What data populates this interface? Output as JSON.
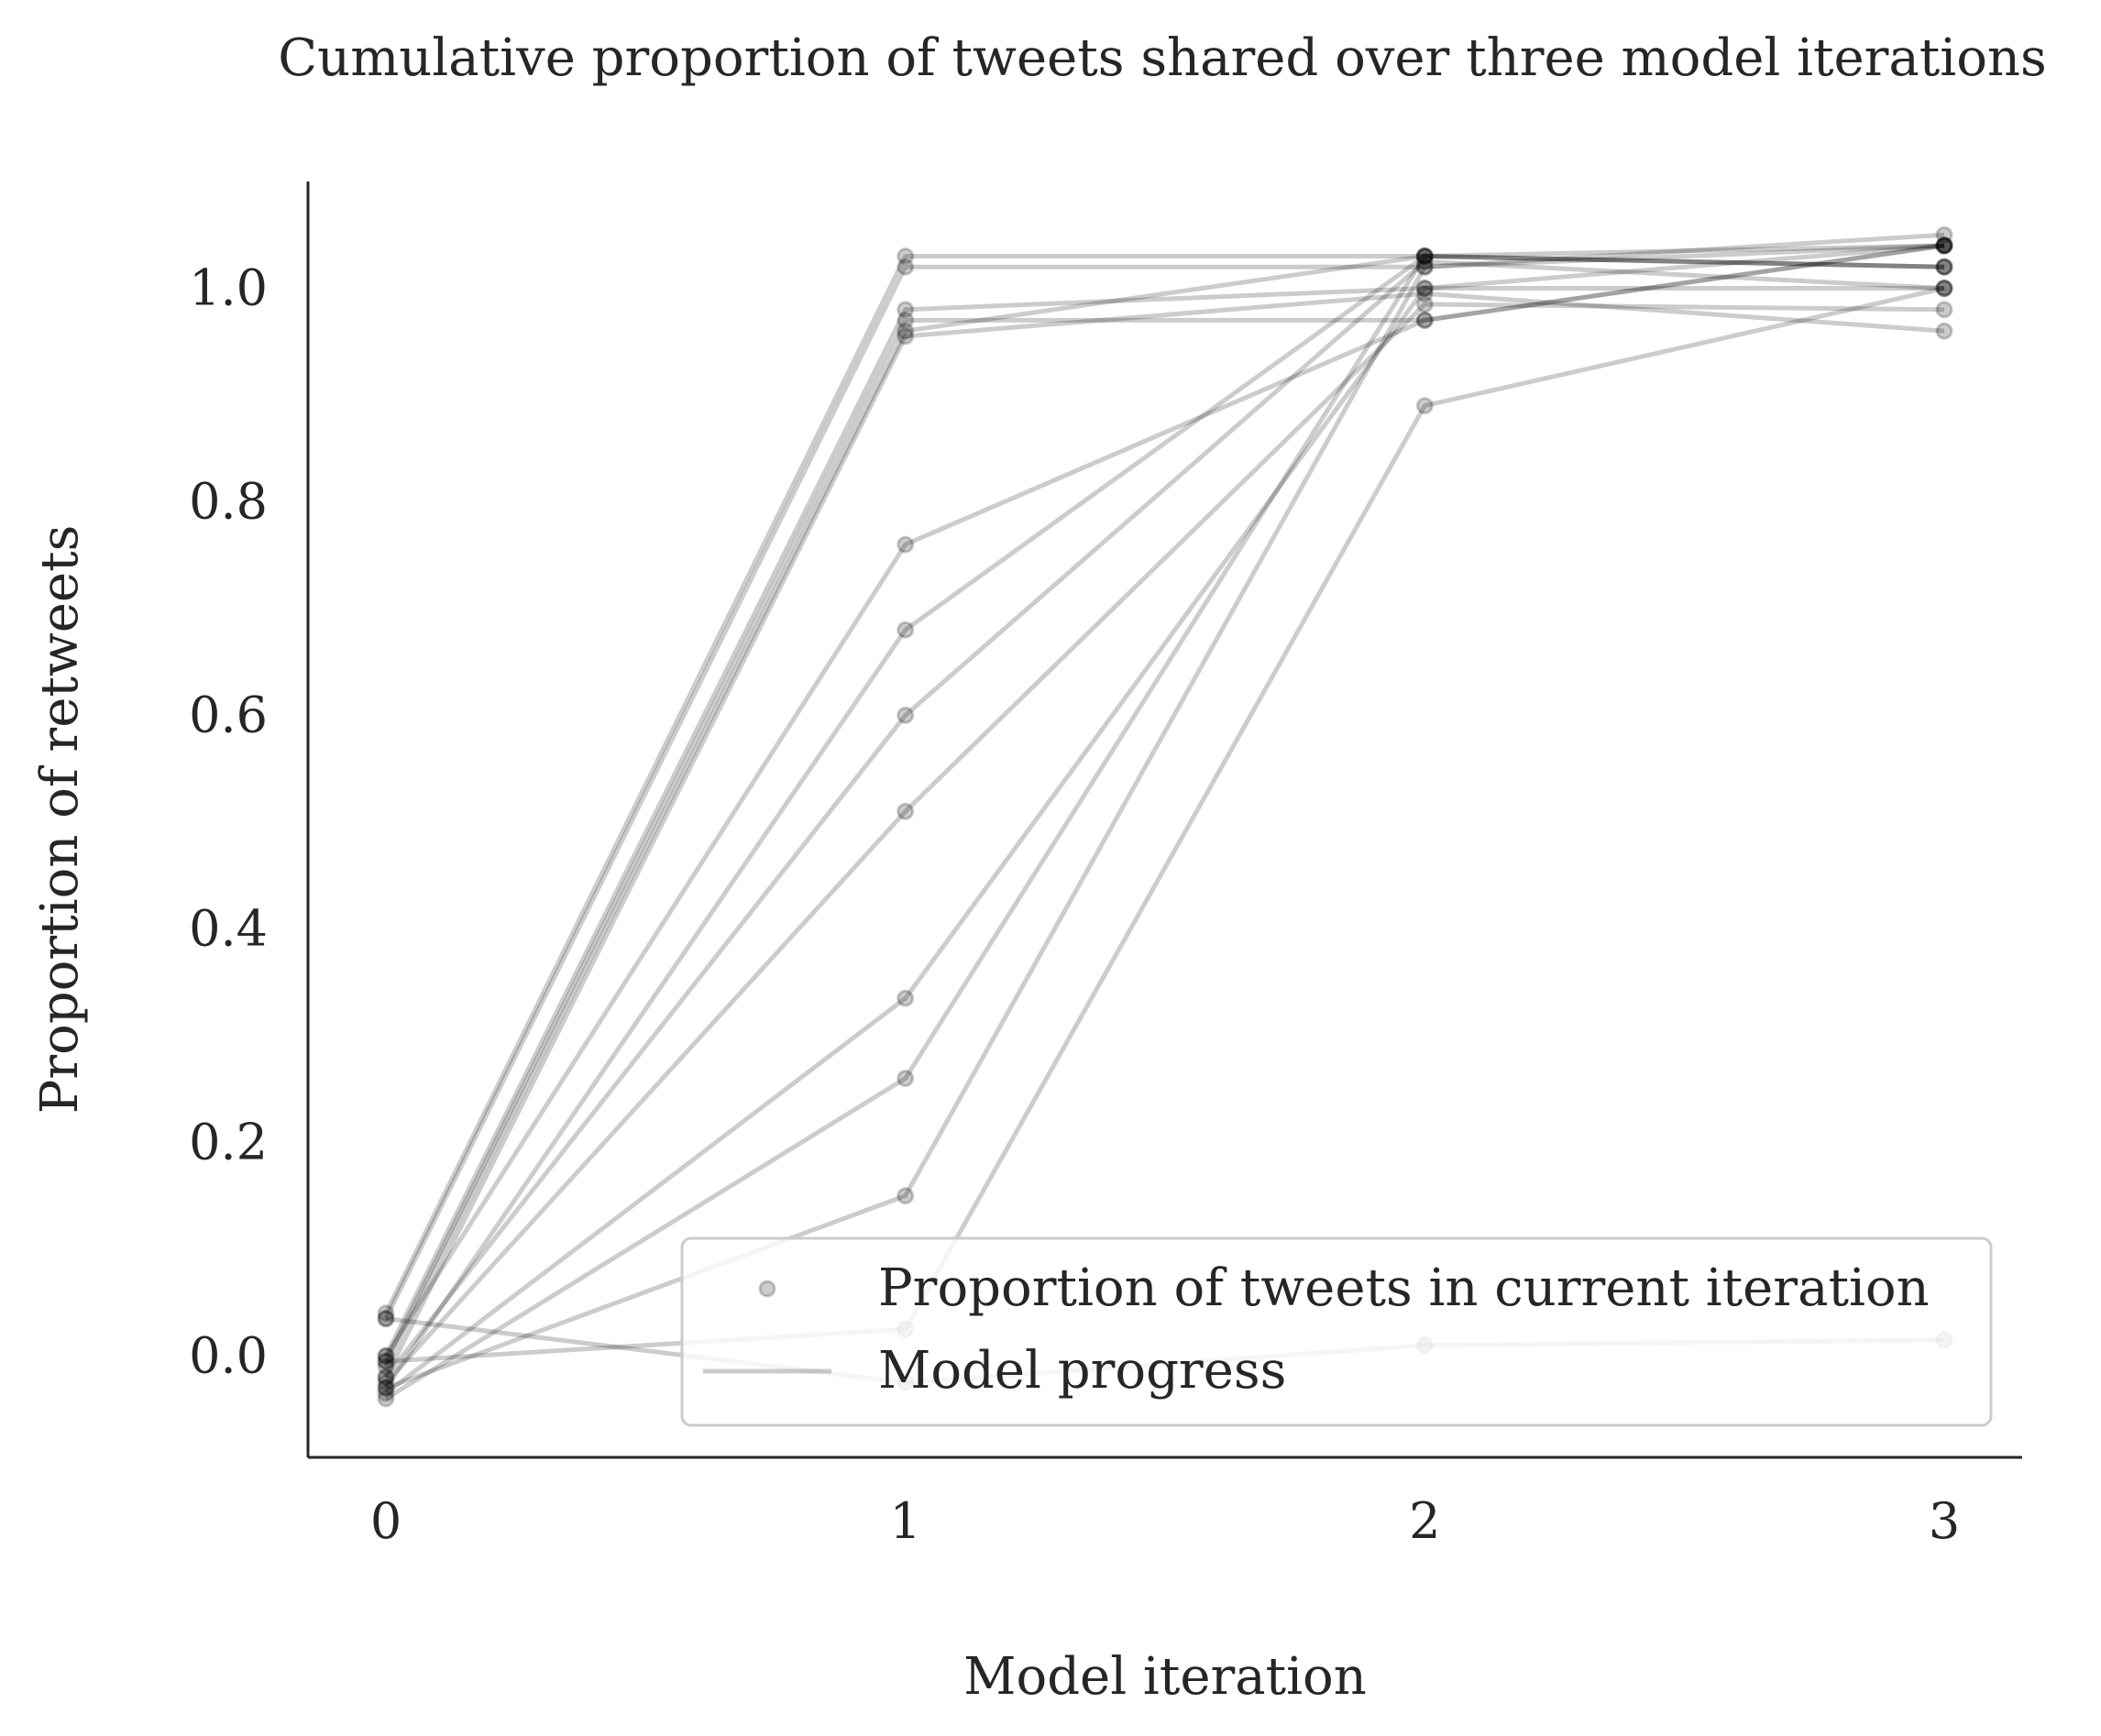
{
  "chart_data": {
    "type": "line",
    "title": "Cumulative proportion of tweets shared over three model iterations",
    "xlabel": "Model iteration",
    "ylabel": "Proportion of retweets",
    "x": [
      0,
      1,
      2,
      3
    ],
    "xticks": [
      "0",
      "1",
      "2",
      "3"
    ],
    "yticks": [
      "0.0",
      "0.2",
      "0.4",
      "0.6",
      "0.8",
      "1.0"
    ],
    "ytick_values": [
      0.0,
      0.2,
      0.4,
      0.6,
      0.8,
      1.0
    ],
    "xlim": [
      -0.15,
      3.15
    ],
    "ylim": [
      -0.095,
      1.1
    ],
    "grid": false,
    "legend_placement": "lower-right",
    "legend": {
      "markers": "Proportion of tweets in current iteration",
      "line": "Model progress"
    },
    "series_color": "#000000",
    "series": [
      {
        "values": [
          0.04,
          1.03,
          1.03,
          1.04
        ]
      },
      {
        "values": [
          0.035,
          1.02,
          1.02,
          1.05
        ]
      },
      {
        "values": [
          0.0,
          0.98,
          1.0,
          1.0
        ]
      },
      {
        "values": [
          -0.005,
          0.97,
          0.97,
          1.04
        ]
      },
      {
        "values": [
          -0.01,
          0.96,
          1.03,
          1.02
        ]
      },
      {
        "values": [
          -0.02,
          0.955,
          0.995,
          0.96
        ]
      },
      {
        "values": [
          0.0,
          0.76,
          0.97,
          1.04
        ]
      },
      {
        "values": [
          -0.03,
          0.68,
          1.03,
          1.02
        ]
      },
      {
        "values": [
          -0.02,
          0.6,
          1.025,
          1.0
        ]
      },
      {
        "values": [
          -0.025,
          0.51,
          0.985,
          0.98
        ]
      },
      {
        "values": [
          -0.035,
          0.335,
          1.0,
          1.04
        ]
      },
      {
        "values": [
          -0.04,
          0.26,
          1.03,
          1.02
        ]
      },
      {
        "values": [
          -0.03,
          0.15,
          1.02,
          1.04
        ]
      },
      {
        "values": [
          -0.005,
          0.025,
          0.89,
          1.0
        ]
      },
      {
        "values": [
          0.035,
          -0.025,
          0.01,
          0.015
        ]
      }
    ]
  }
}
